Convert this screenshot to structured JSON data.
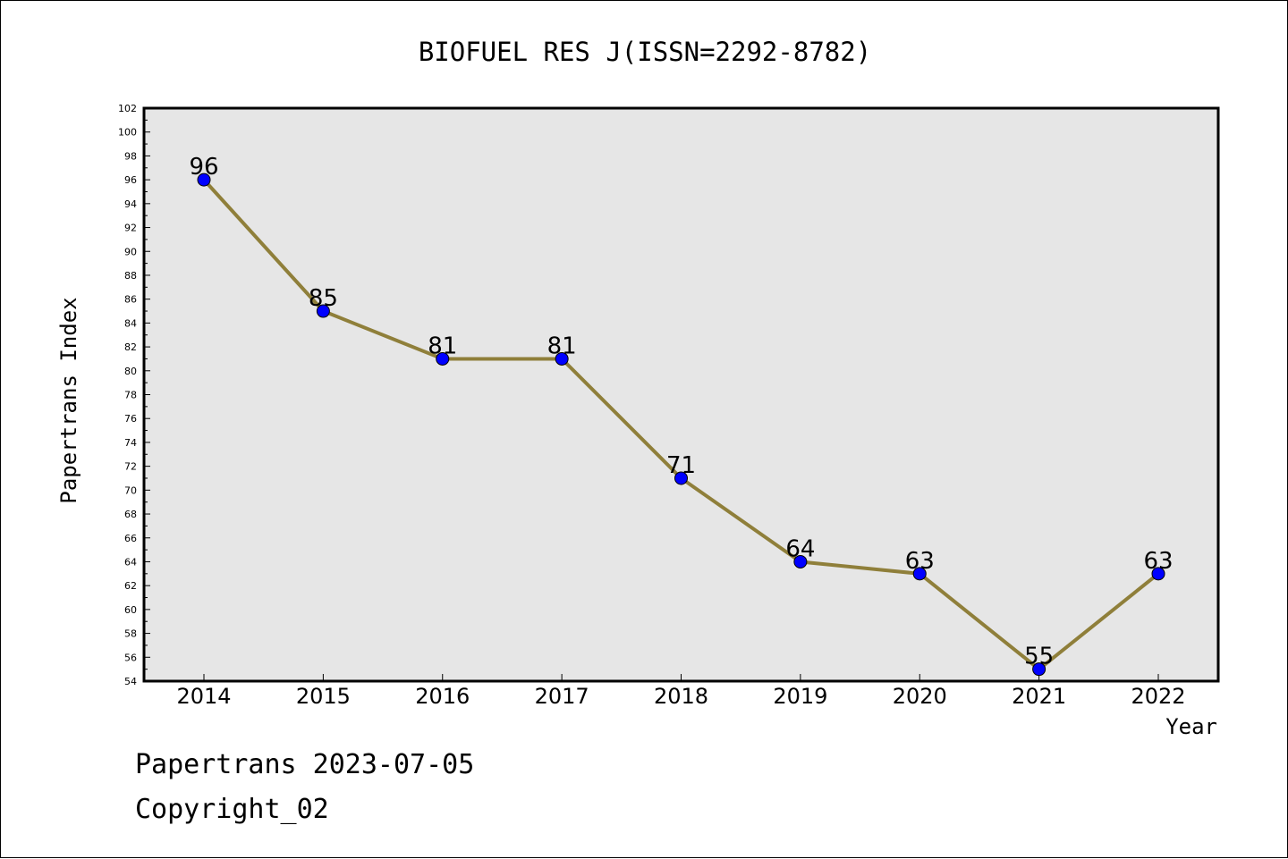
{
  "chart_data": {
    "type": "line",
    "title": "BIOFUEL RES J(ISSN=2292-8782)",
    "xlabel": "Year",
    "ylabel": "Papertrans Index",
    "categories": [
      "2014",
      "2015",
      "2016",
      "2017",
      "2018",
      "2019",
      "2020",
      "2021",
      "2022"
    ],
    "series": [
      {
        "values": [
          96,
          85,
          81,
          81,
          71,
          64,
          63,
          55,
          63
        ]
      }
    ],
    "ylim": [
      54,
      102
    ],
    "ytick_step": 2,
    "grid": false,
    "line_color": "#8f7f3a",
    "marker_color": "#0000ff",
    "plot_background": "#e6e6e6"
  },
  "footer": {
    "line1": "Papertrans 2023-07-05",
    "line2": "Copyright_02"
  }
}
